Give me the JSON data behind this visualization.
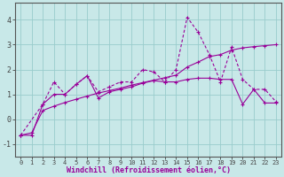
{
  "bg_color": "#c8e8e8",
  "grid_color": "#99cccc",
  "line_color": "#990099",
  "x_label": "Windchill (Refroidissement éolien,°C)",
  "x_ticks": [
    0,
    1,
    2,
    3,
    4,
    5,
    6,
    7,
    8,
    9,
    10,
    11,
    12,
    13,
    14,
    15,
    16,
    17,
    18,
    19,
    20,
    21,
    22,
    23
  ],
  "y_ticks": [
    -1,
    0,
    1,
    2,
    3,
    4
  ],
  "ylim": [
    -1.5,
    4.7
  ],
  "xlim": [
    -0.5,
    23.5
  ],
  "line1_x": [
    0,
    1,
    2,
    3,
    4,
    5,
    6,
    7,
    8,
    9,
    10,
    11,
    12,
    13,
    14,
    15,
    16,
    17,
    18,
    19,
    20,
    21,
    22,
    23
  ],
  "line1_y": [
    -0.65,
    -0.65,
    0.6,
    1.0,
    1.0,
    1.4,
    1.75,
    0.85,
    1.1,
    1.2,
    1.3,
    1.45,
    1.55,
    1.5,
    1.5,
    1.6,
    1.65,
    1.65,
    1.6,
    1.6,
    0.6,
    1.2,
    0.65,
    0.65
  ],
  "line2_x": [
    0,
    2,
    3,
    4,
    5,
    6,
    7,
    8,
    9,
    10,
    11,
    12,
    13,
    14,
    15,
    16,
    17,
    18,
    19,
    20,
    21,
    22,
    23
  ],
  "line2_y": [
    -0.65,
    0.6,
    1.5,
    1.0,
    1.4,
    1.75,
    1.1,
    1.3,
    1.5,
    1.5,
    2.0,
    1.9,
    1.5,
    2.0,
    4.1,
    3.5,
    2.6,
    1.5,
    2.9,
    1.6,
    1.2,
    1.2,
    0.7
  ],
  "line3_x": [
    0,
    1,
    2,
    3,
    4,
    5,
    6,
    7,
    8,
    9,
    10,
    11,
    12,
    13,
    14,
    15,
    16,
    17,
    18,
    19,
    20,
    21,
    22,
    23
  ],
  "line3_y": [
    -0.65,
    -0.55,
    0.35,
    0.52,
    0.67,
    0.8,
    0.93,
    1.05,
    1.15,
    1.25,
    1.37,
    1.47,
    1.57,
    1.67,
    1.77,
    2.1,
    2.3,
    2.52,
    2.6,
    2.78,
    2.87,
    2.92,
    2.96,
    3.0
  ],
  "linewidth": 0.8,
  "markersize": 2.5
}
